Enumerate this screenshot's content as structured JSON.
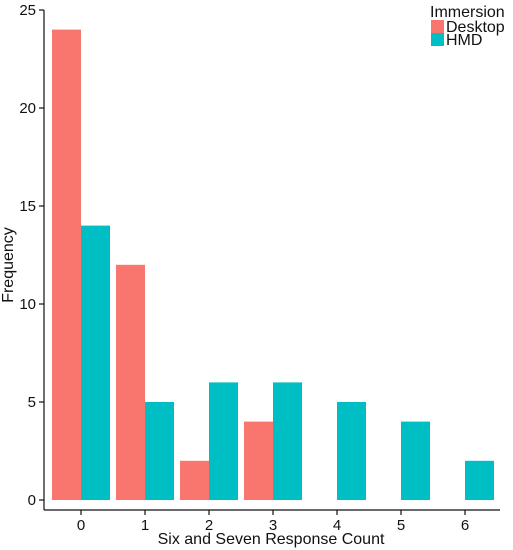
{
  "chart_data": {
    "type": "bar",
    "categories": [
      "0",
      "1",
      "2",
      "3",
      "4",
      "5",
      "6"
    ],
    "series": [
      {
        "name": "Desktop",
        "color": "#F8766D",
        "values": [
          24,
          12,
          2,
          4,
          0,
          0,
          0
        ]
      },
      {
        "name": "HMD",
        "color": "#00BFC4",
        "values": [
          14,
          5,
          6,
          6,
          5,
          4,
          2
        ]
      }
    ],
    "xlabel": "Six and Seven Response Count",
    "ylabel": "Frequency",
    "ylim": [
      0,
      25
    ],
    "yticks": [
      0,
      5,
      10,
      15,
      20,
      25
    ],
    "legend": {
      "title": "Immersion",
      "position": "top-right"
    },
    "grid": false
  }
}
